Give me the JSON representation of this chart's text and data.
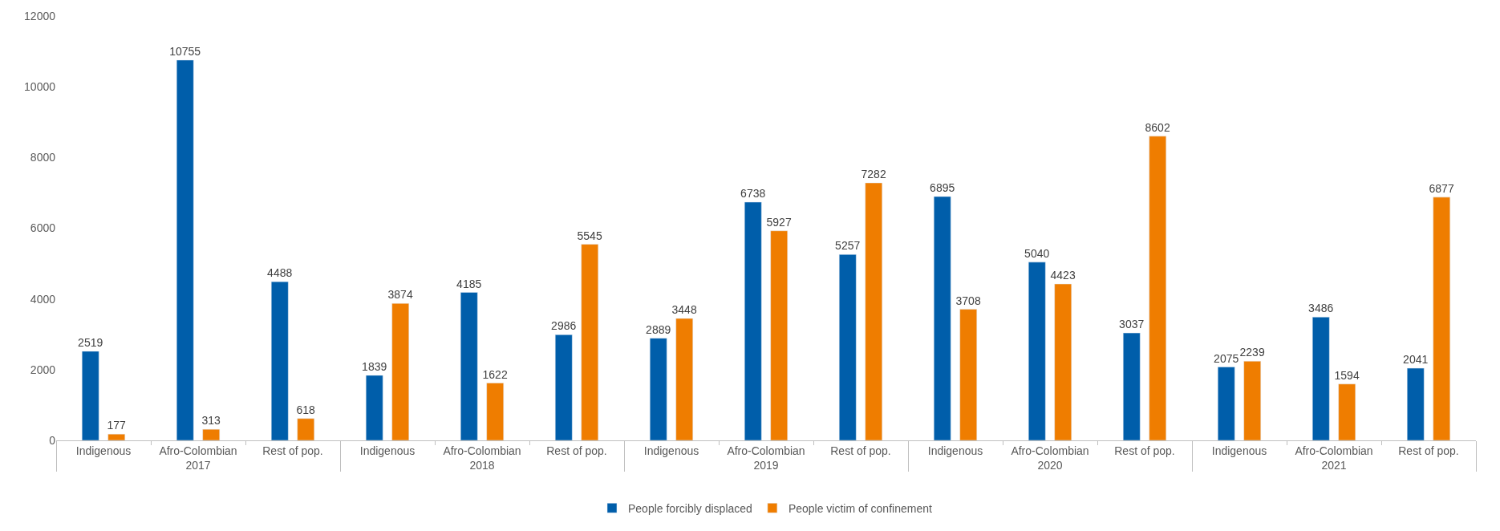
{
  "chart_data": {
    "type": "bar",
    "categories": [
      "Indigenous",
      "Afro-Colombian",
      "Rest of pop.",
      "Indigenous",
      "Afro-Colombian",
      "Rest of pop.",
      "Indigenous",
      "Afro-Colombian",
      "Rest of pop.",
      "Indigenous",
      "Afro-Colombian",
      "Rest of pop.",
      "Indigenous",
      "Afro-Colombian",
      "Rest of pop."
    ],
    "annotations": [
      "2017",
      "2018",
      "2019",
      "2020",
      "2021"
    ],
    "series": [
      {
        "name": "People forcibly displaced",
        "color": "#005eaa",
        "values": [
          2519,
          10755,
          4488,
          1839,
          4185,
          2986,
          2889,
          6738,
          5257,
          6895,
          5040,
          3037,
          2075,
          3486,
          2041
        ]
      },
      {
        "name": "People victim of confinement",
        "color": "#ef7d00",
        "values": [
          177,
          313,
          618,
          3874,
          1622,
          5545,
          3448,
          5927,
          7282,
          3708,
          4423,
          8602,
          2239,
          1594,
          6877
        ]
      }
    ],
    "ylim": [
      0,
      12000
    ],
    "yticks": [
      0,
      2000,
      4000,
      6000,
      8000,
      10000,
      12000
    ],
    "data_labels": true,
    "legend": "bottom"
  }
}
